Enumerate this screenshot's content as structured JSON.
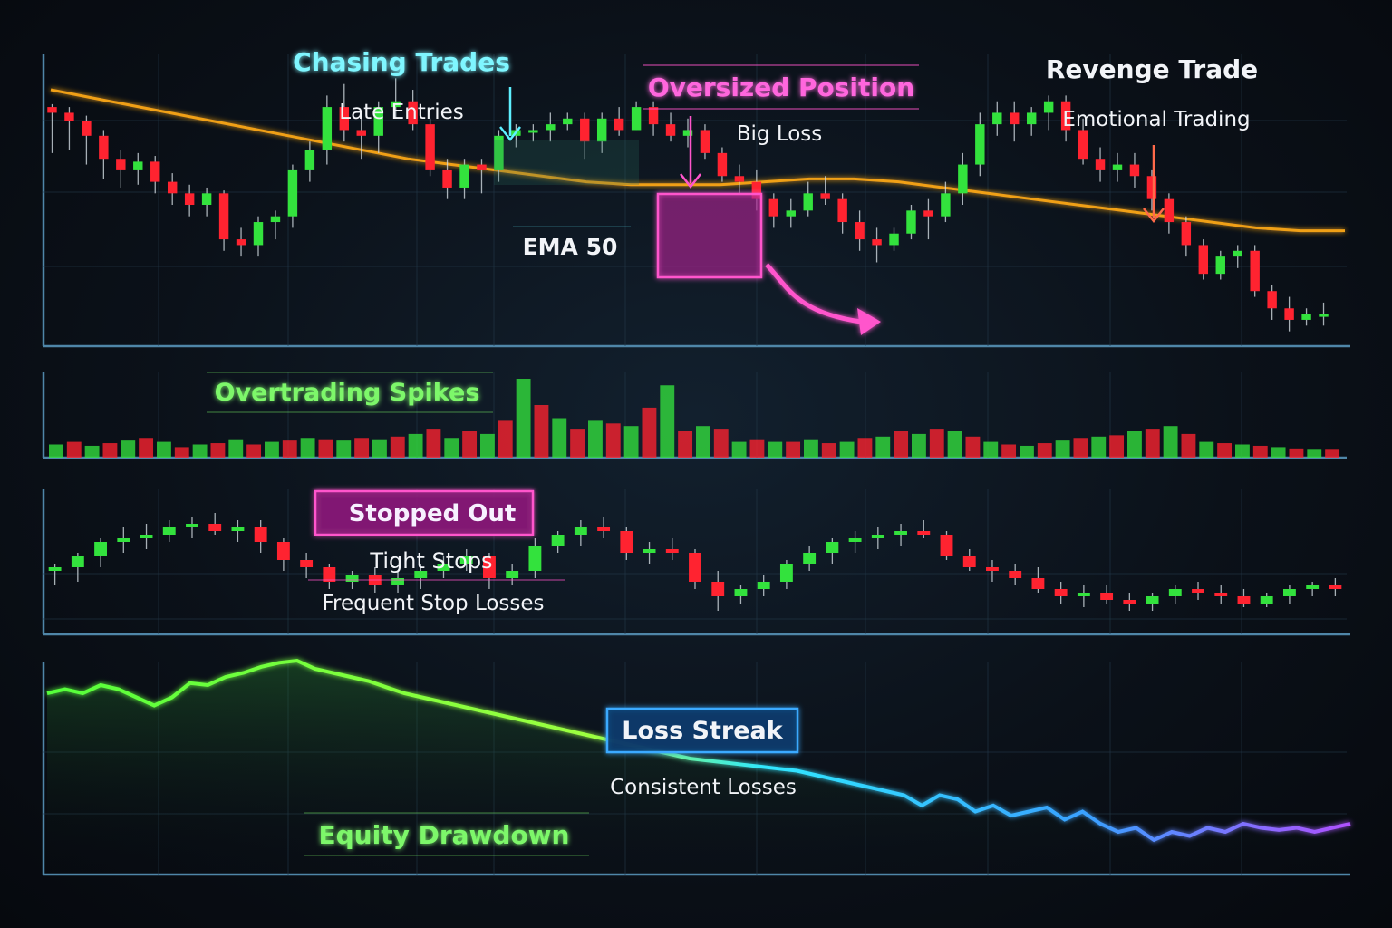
{
  "colors": {
    "background": "#0b1119",
    "bull": "#33e23d",
    "bear": "#ff2330",
    "ema": "#f0a018",
    "axis": "#4f86a8",
    "cyan": "#5ef0ff",
    "magenta": "#ff55cc",
    "red_accent": "#ff3a3a",
    "green_text": "#7df76a",
    "white_text": "#f2f4f8"
  },
  "annotations": {
    "chasing_title": "Chasing Trades",
    "chasing_sub": "Late Entries",
    "oversized_title": "Oversized Position",
    "oversized_sub": "Big Loss",
    "revenge_title": "Revenge Trade",
    "revenge_sub": "Emotional Trading",
    "ema_label": "EMA 50",
    "overtrading_title": "Overtrading Spikes",
    "stopped_title": "Stopped Out",
    "stopped_sub1": "Tight Stops",
    "stopped_sub2": "Frequent Stop Losses",
    "loss_streak_title": "Loss Streak",
    "loss_streak_sub": "Consistent Losses",
    "equity_title": "Equity Drawdown"
  },
  "chart_data": [
    {
      "type": "candlestick",
      "panel": "price",
      "candles": [
        [
          60,
          61,
          44,
          58
        ],
        [
          58,
          60,
          45,
          55
        ],
        [
          55,
          57,
          40,
          50
        ],
        [
          50,
          52,
          35,
          42
        ],
        [
          42,
          45,
          32,
          38
        ],
        [
          38,
          44,
          33,
          41
        ],
        [
          41,
          43,
          30,
          34
        ],
        [
          34,
          37,
          26,
          30
        ],
        [
          30,
          33,
          22,
          26
        ],
        [
          26,
          32,
          22,
          30
        ],
        [
          30,
          31,
          10,
          14
        ],
        [
          14,
          18,
          8,
          12
        ],
        [
          12,
          22,
          8,
          20
        ],
        [
          20,
          24,
          14,
          22
        ],
        [
          22,
          40,
          18,
          38
        ],
        [
          38,
          48,
          34,
          45
        ],
        [
          45,
          64,
          40,
          60
        ],
        [
          60,
          68,
          48,
          52
        ],
        [
          52,
          56,
          42,
          50
        ],
        [
          50,
          62,
          44,
          60
        ],
        [
          60,
          70,
          56,
          62
        ],
        [
          62,
          66,
          52,
          54
        ],
        [
          54,
          56,
          36,
          38
        ],
        [
          38,
          42,
          28,
          32
        ],
        [
          32,
          42,
          28,
          40
        ],
        [
          40,
          42,
          30,
          38
        ],
        [
          38,
          52,
          34,
          50
        ],
        [
          50,
          54,
          46,
          52
        ],
        [
          52,
          54,
          48,
          52
        ],
        [
          52,
          58,
          48,
          54
        ],
        [
          54,
          58,
          52,
          56
        ],
        [
          56,
          58,
          42,
          48
        ],
        [
          48,
          58,
          44,
          56
        ],
        [
          56,
          60,
          50,
          52
        ],
        [
          52,
          62,
          52,
          60
        ],
        [
          60,
          62,
          50,
          54
        ],
        [
          54,
          58,
          48,
          50
        ],
        [
          50,
          56,
          46,
          52
        ],
        [
          52,
          54,
          42,
          44
        ],
        [
          44,
          46,
          34,
          36
        ],
        [
          36,
          40,
          30,
          34
        ],
        [
          34,
          38,
          24,
          28
        ],
        [
          28,
          30,
          18,
          22
        ],
        [
          22,
          28,
          18,
          24
        ],
        [
          24,
          34,
          22,
          30
        ],
        [
          30,
          36,
          26,
          28
        ],
        [
          28,
          30,
          16,
          20
        ],
        [
          20,
          24,
          10,
          14
        ],
        [
          14,
          18,
          6,
          12
        ],
        [
          12,
          18,
          10,
          16
        ],
        [
          16,
          26,
          14,
          24
        ],
        [
          24,
          28,
          14,
          22
        ],
        [
          22,
          34,
          20,
          30
        ],
        [
          30,
          44,
          26,
          40
        ],
        [
          40,
          58,
          36,
          54
        ],
        [
          54,
          62,
          50,
          58
        ],
        [
          58,
          62,
          48,
          54
        ],
        [
          54,
          60,
          50,
          58
        ],
        [
          58,
          64,
          52,
          62
        ],
        [
          62,
          64,
          48,
          52
        ],
        [
          52,
          56,
          40,
          42
        ],
        [
          42,
          46,
          34,
          38
        ],
        [
          38,
          44,
          34,
          40
        ],
        [
          40,
          44,
          32,
          36
        ],
        [
          36,
          38,
          24,
          28
        ],
        [
          28,
          30,
          16,
          20
        ],
        [
          20,
          22,
          8,
          12
        ],
        [
          12,
          14,
          0,
          2
        ],
        [
          2,
          10,
          0,
          8
        ],
        [
          8,
          12,
          4,
          10
        ],
        [
          10,
          12,
          -6,
          -4
        ],
        [
          -4,
          -2,
          -14,
          -10
        ],
        [
          -10,
          -6,
          -18,
          -14
        ],
        [
          -14,
          -10,
          -16,
          -12
        ],
        [
          -12,
          -8,
          -16,
          -12
        ]
      ],
      "ema50": [
        66,
        63,
        60,
        57,
        54,
        51,
        48,
        45,
        42,
        40,
        38,
        36,
        34,
        33,
        33,
        33,
        34,
        35,
        35,
        34,
        32,
        30,
        28,
        26,
        24,
        22,
        20,
        18,
        17,
        17
      ]
    },
    {
      "type": "bar",
      "panel": "volume",
      "values": [
        10,
        12,
        9,
        11,
        13,
        15,
        12,
        8,
        10,
        11,
        14,
        10,
        12,
        13,
        15,
        14,
        13,
        15,
        14,
        16,
        18,
        22,
        15,
        20,
        18,
        28,
        60,
        40,
        30,
        22,
        28,
        26,
        24,
        38,
        55,
        20,
        24,
        22,
        12,
        14,
        12,
        12,
        14,
        11,
        12,
        15,
        16,
        20,
        18,
        22,
        20,
        16,
        12,
        10,
        9,
        11,
        13,
        15,
        16,
        17,
        20,
        22,
        24,
        18,
        12,
        11,
        10,
        9,
        8,
        7,
        6,
        6
      ],
      "colors": "alternating bull/bear"
    },
    {
      "type": "candlestick",
      "panel": "stops",
      "stop_level": 50,
      "candles": [
        [
          30,
          34,
          22,
          32
        ],
        [
          32,
          40,
          24,
          38
        ],
        [
          38,
          48,
          32,
          46
        ],
        [
          46,
          54,
          40,
          48
        ],
        [
          48,
          56,
          42,
          50
        ],
        [
          50,
          58,
          46,
          54
        ],
        [
          54,
          60,
          48,
          56
        ],
        [
          56,
          62,
          50,
          52
        ],
        [
          52,
          58,
          46,
          54
        ],
        [
          54,
          58,
          40,
          46
        ],
        [
          46,
          48,
          30,
          36
        ],
        [
          36,
          40,
          26,
          32
        ],
        [
          32,
          34,
          20,
          24
        ],
        [
          24,
          30,
          20,
          28
        ],
        [
          28,
          32,
          18,
          22
        ],
        [
          22,
          30,
          18,
          26
        ],
        [
          26,
          34,
          20,
          30
        ],
        [
          30,
          38,
          26,
          34
        ],
        [
          34,
          42,
          30,
          38
        ],
        [
          38,
          40,
          20,
          26
        ],
        [
          26,
          34,
          22,
          30
        ],
        [
          30,
          48,
          26,
          44
        ],
        [
          44,
          52,
          40,
          50
        ],
        [
          50,
          58,
          44,
          54
        ],
        [
          54,
          60,
          48,
          52
        ],
        [
          52,
          54,
          36,
          40
        ],
        [
          40,
          46,
          34,
          42
        ],
        [
          42,
          48,
          36,
          40
        ],
        [
          40,
          42,
          20,
          24
        ],
        [
          24,
          30,
          8,
          16
        ],
        [
          16,
          22,
          12,
          20
        ],
        [
          20,
          28,
          16,
          24
        ],
        [
          24,
          36,
          20,
          34
        ],
        [
          34,
          44,
          30,
          40
        ],
        [
          40,
          48,
          34,
          46
        ],
        [
          46,
          52,
          40,
          48
        ],
        [
          48,
          54,
          42,
          50
        ],
        [
          50,
          56,
          44,
          52
        ],
        [
          52,
          58,
          48,
          50
        ],
        [
          50,
          52,
          36,
          38
        ],
        [
          38,
          42,
          30,
          32
        ],
        [
          32,
          36,
          24,
          30
        ],
        [
          30,
          34,
          22,
          26
        ],
        [
          26,
          32,
          18,
          20
        ],
        [
          20,
          24,
          12,
          16
        ],
        [
          16,
          22,
          10,
          18
        ],
        [
          18,
          22,
          12,
          14
        ],
        [
          14,
          18,
          8,
          12
        ],
        [
          12,
          18,
          8,
          16
        ],
        [
          16,
          22,
          12,
          20
        ],
        [
          20,
          24,
          14,
          18
        ],
        [
          18,
          22,
          12,
          16
        ],
        [
          16,
          20,
          10,
          12
        ],
        [
          12,
          18,
          10,
          16
        ],
        [
          16,
          22,
          12,
          20
        ],
        [
          20,
          24,
          16,
          22
        ],
        [
          22,
          26,
          16,
          20
        ]
      ]
    },
    {
      "type": "line",
      "panel": "equity",
      "values": [
        80,
        82,
        80,
        84,
        82,
        78,
        74,
        78,
        85,
        84,
        88,
        90,
        93,
        95,
        96,
        92,
        90,
        88,
        86,
        83,
        80,
        78,
        76,
        74,
        72,
        70,
        68,
        66,
        64,
        62,
        60,
        58,
        56,
        54,
        52,
        50,
        48,
        47,
        46,
        45,
        44,
        43,
        42,
        40,
        38,
        36,
        34,
        32,
        30,
        25,
        30,
        28,
        22,
        25,
        20,
        22,
        24,
        18,
        22,
        16,
        12,
        14,
        8,
        12,
        10,
        14,
        12,
        16,
        14,
        13,
        14,
        12,
        14,
        16
      ]
    }
  ]
}
